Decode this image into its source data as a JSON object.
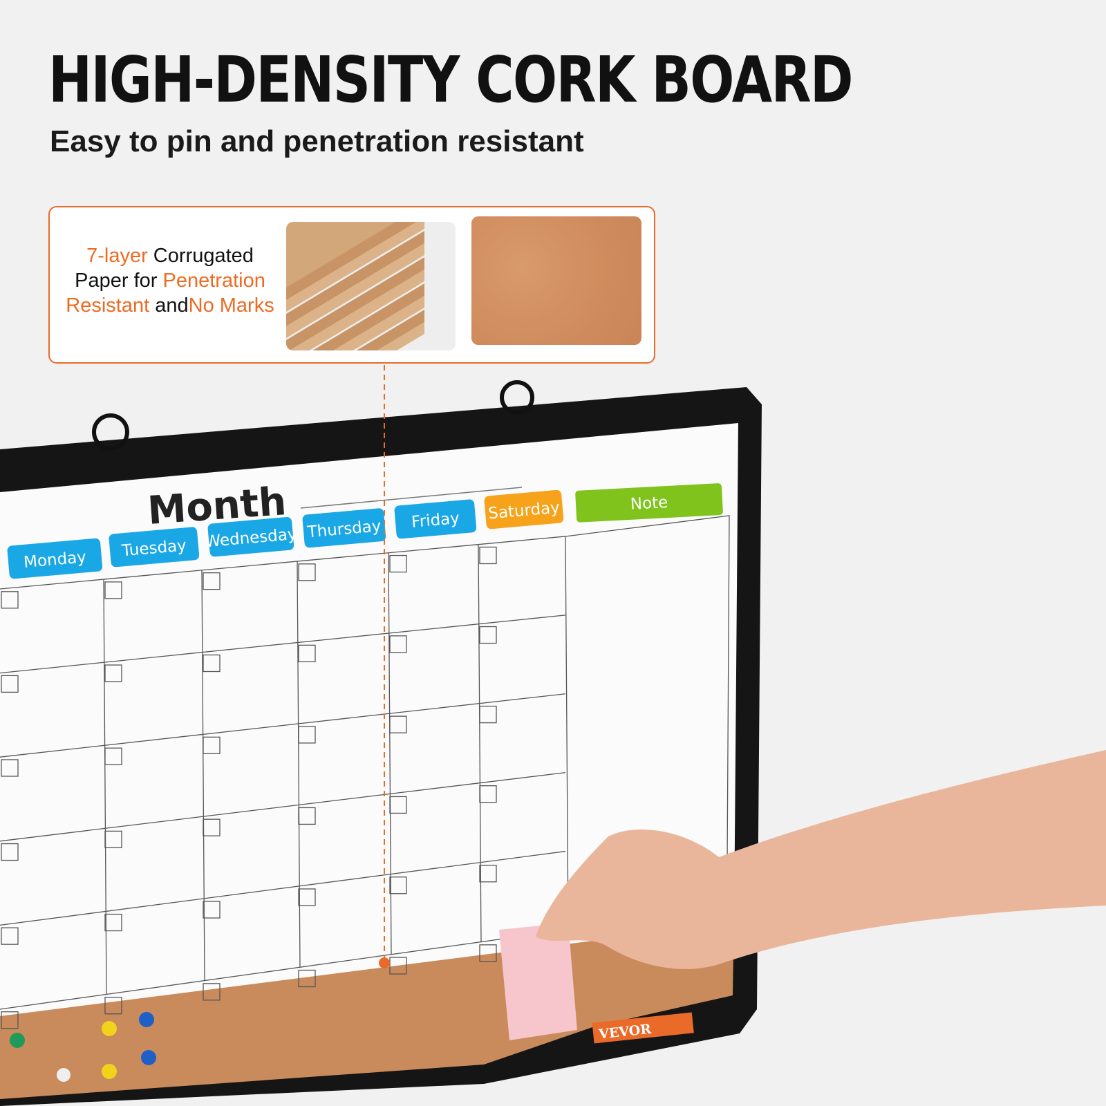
{
  "header": {
    "title": "HIGH-DENSITY CORK BOARD",
    "subtitle": "Easy to pin and penetration resistant"
  },
  "callout": {
    "parts": [
      "7-layer",
      " Corrugated Paper for ",
      "Penetration Resistant",
      " and",
      "No Marks"
    ],
    "images": [
      "corrugated-paper-layers",
      "cork-texture"
    ]
  },
  "board": {
    "heading": "Month",
    "days": [
      "Monday",
      "Tuesday",
      "Wednesday",
      "Thursday",
      "Friday",
      "Saturday"
    ],
    "note_label": "Note",
    "brand_label": "VEVOR",
    "colors": {
      "day_tab": "#1aa7e6",
      "saturday_tab": "#f7a21b",
      "note_tab": "#7fc31c",
      "accent": "#ea6a2a",
      "cork": "#c98a5c"
    }
  }
}
